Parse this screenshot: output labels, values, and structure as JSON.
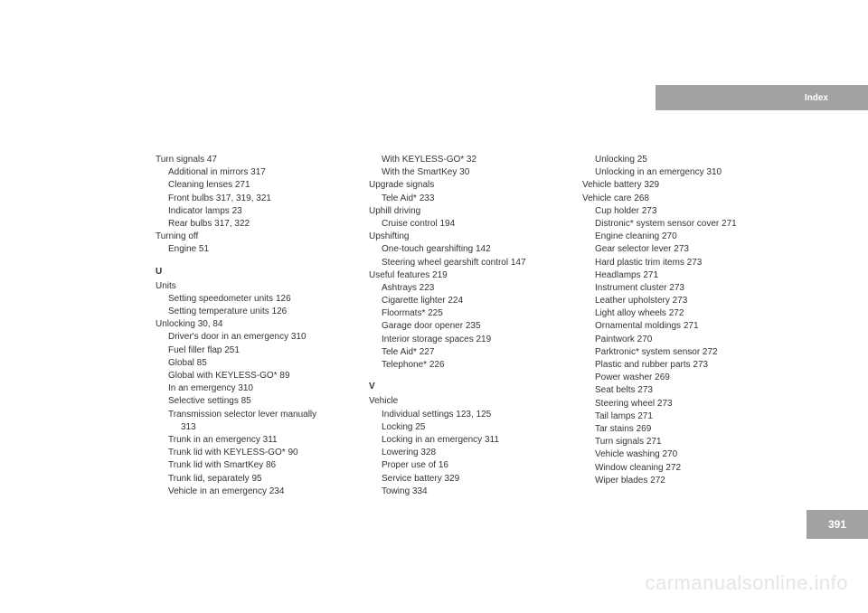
{
  "header": {
    "label": "Index"
  },
  "page_number": "391",
  "watermark": "carmanualsonline.info",
  "columns": [
    [
      {
        "type": "line",
        "indent": 0,
        "text": "Turn signals 47"
      },
      {
        "type": "line",
        "indent": 1,
        "text": "Additional in mirrors 317"
      },
      {
        "type": "line",
        "indent": 1,
        "text": "Cleaning lenses 271"
      },
      {
        "type": "line",
        "indent": 1,
        "text": "Front bulbs 317, 319, 321"
      },
      {
        "type": "line",
        "indent": 1,
        "text": "Indicator lamps 23"
      },
      {
        "type": "line",
        "indent": 1,
        "text": "Rear bulbs 317, 322"
      },
      {
        "type": "line",
        "indent": 0,
        "text": "Turning off"
      },
      {
        "type": "line",
        "indent": 1,
        "text": "Engine 51"
      },
      {
        "type": "letter",
        "text": "U"
      },
      {
        "type": "line",
        "indent": 0,
        "text": "Units"
      },
      {
        "type": "line",
        "indent": 1,
        "text": "Setting speedometer units 126"
      },
      {
        "type": "line",
        "indent": 1,
        "text": "Setting temperature units 126"
      },
      {
        "type": "line",
        "indent": 0,
        "text": "Unlocking 30, 84"
      },
      {
        "type": "line",
        "indent": 1,
        "text": "Driver's door in an emergency 310"
      },
      {
        "type": "line",
        "indent": 1,
        "text": "Fuel filler flap 251"
      },
      {
        "type": "line",
        "indent": 1,
        "text": "Global 85"
      },
      {
        "type": "line",
        "indent": 1,
        "text": "Global with KEYLESS-GO* 89"
      },
      {
        "type": "line",
        "indent": 1,
        "text": "In an emergency 310"
      },
      {
        "type": "line",
        "indent": 1,
        "text": "Selective settings 85"
      },
      {
        "type": "line",
        "indent": 1,
        "text": "Transmission selector lever manually"
      },
      {
        "type": "line",
        "indent": 2,
        "text": "313"
      },
      {
        "type": "line",
        "indent": 1,
        "text": "Trunk in an emergency 311"
      },
      {
        "type": "line",
        "indent": 1,
        "text": "Trunk lid with KEYLESS-GO* 90"
      },
      {
        "type": "line",
        "indent": 1,
        "text": "Trunk lid with SmartKey 86"
      },
      {
        "type": "line",
        "indent": 1,
        "text": "Trunk lid, separately 95"
      },
      {
        "type": "line",
        "indent": 1,
        "text": "Vehicle in an emergency 234"
      }
    ],
    [
      {
        "type": "line",
        "indent": 1,
        "text": "With KEYLESS-GO* 32"
      },
      {
        "type": "line",
        "indent": 1,
        "text": "With the SmartKey 30"
      },
      {
        "type": "line",
        "indent": 0,
        "text": "Upgrade signals"
      },
      {
        "type": "line",
        "indent": 1,
        "text": "Tele Aid* 233"
      },
      {
        "type": "line",
        "indent": 0,
        "text": "Uphill driving"
      },
      {
        "type": "line",
        "indent": 1,
        "text": "Cruise control 194"
      },
      {
        "type": "line",
        "indent": 0,
        "text": "Upshifting"
      },
      {
        "type": "line",
        "indent": 1,
        "text": "One-touch gearshifting 142"
      },
      {
        "type": "line",
        "indent": 1,
        "text": "Steering wheel gearshift control 147"
      },
      {
        "type": "line",
        "indent": 0,
        "text": "Useful features 219"
      },
      {
        "type": "line",
        "indent": 1,
        "text": "Ashtrays 223"
      },
      {
        "type": "line",
        "indent": 1,
        "text": "Cigarette lighter 224"
      },
      {
        "type": "line",
        "indent": 1,
        "text": "Floormats* 225"
      },
      {
        "type": "line",
        "indent": 1,
        "text": "Garage door opener 235"
      },
      {
        "type": "line",
        "indent": 1,
        "text": "Interior storage spaces 219"
      },
      {
        "type": "line",
        "indent": 1,
        "text": "Tele Aid* 227"
      },
      {
        "type": "line",
        "indent": 1,
        "text": "Telephone* 226"
      },
      {
        "type": "letter",
        "text": "V"
      },
      {
        "type": "line",
        "indent": 0,
        "text": "Vehicle"
      },
      {
        "type": "line",
        "indent": 1,
        "text": "Individual settings 123, 125"
      },
      {
        "type": "line",
        "indent": 1,
        "text": "Locking 25"
      },
      {
        "type": "line",
        "indent": 1,
        "text": "Locking in an emergency 311"
      },
      {
        "type": "line",
        "indent": 1,
        "text": "Lowering 328"
      },
      {
        "type": "line",
        "indent": 1,
        "text": "Proper use of 16"
      },
      {
        "type": "line",
        "indent": 1,
        "text": "Service battery 329"
      },
      {
        "type": "line",
        "indent": 1,
        "text": "Towing 334"
      }
    ],
    [
      {
        "type": "line",
        "indent": 1,
        "text": "Unlocking 25"
      },
      {
        "type": "line",
        "indent": 1,
        "text": "Unlocking in an emergency 310"
      },
      {
        "type": "line",
        "indent": 0,
        "text": "Vehicle battery 329"
      },
      {
        "type": "line",
        "indent": 0,
        "text": "Vehicle care 268"
      },
      {
        "type": "line",
        "indent": 1,
        "text": "Cup holder 273"
      },
      {
        "type": "line",
        "indent": 1,
        "text": "Distronic* system sensor cover 271"
      },
      {
        "type": "line",
        "indent": 1,
        "text": "Engine cleaning 270"
      },
      {
        "type": "line",
        "indent": 1,
        "text": "Gear selector lever 273"
      },
      {
        "type": "line",
        "indent": 1,
        "text": "Hard plastic trim items 273"
      },
      {
        "type": "line",
        "indent": 1,
        "text": "Headlamps 271"
      },
      {
        "type": "line",
        "indent": 1,
        "text": "Instrument cluster 273"
      },
      {
        "type": "line",
        "indent": 1,
        "text": "Leather upholstery 273"
      },
      {
        "type": "line",
        "indent": 1,
        "text": "Light alloy wheels 272"
      },
      {
        "type": "line",
        "indent": 1,
        "text": "Ornamental moldings 271"
      },
      {
        "type": "line",
        "indent": 1,
        "text": "Paintwork 270"
      },
      {
        "type": "line",
        "indent": 1,
        "text": "Parktronic* system sensor 272"
      },
      {
        "type": "line",
        "indent": 1,
        "text": "Plastic and rubber parts 273"
      },
      {
        "type": "line",
        "indent": 1,
        "text": "Power washer 269"
      },
      {
        "type": "line",
        "indent": 1,
        "text": "Seat belts 273"
      },
      {
        "type": "line",
        "indent": 1,
        "text": "Steering wheel 273"
      },
      {
        "type": "line",
        "indent": 1,
        "text": "Tail lamps 271"
      },
      {
        "type": "line",
        "indent": 1,
        "text": "Tar stains 269"
      },
      {
        "type": "line",
        "indent": 1,
        "text": "Turn signals 271"
      },
      {
        "type": "line",
        "indent": 1,
        "text": "Vehicle washing 270"
      },
      {
        "type": "line",
        "indent": 1,
        "text": "Window cleaning 272"
      },
      {
        "type": "line",
        "indent": 1,
        "text": "Wiper blades 272"
      }
    ]
  ]
}
